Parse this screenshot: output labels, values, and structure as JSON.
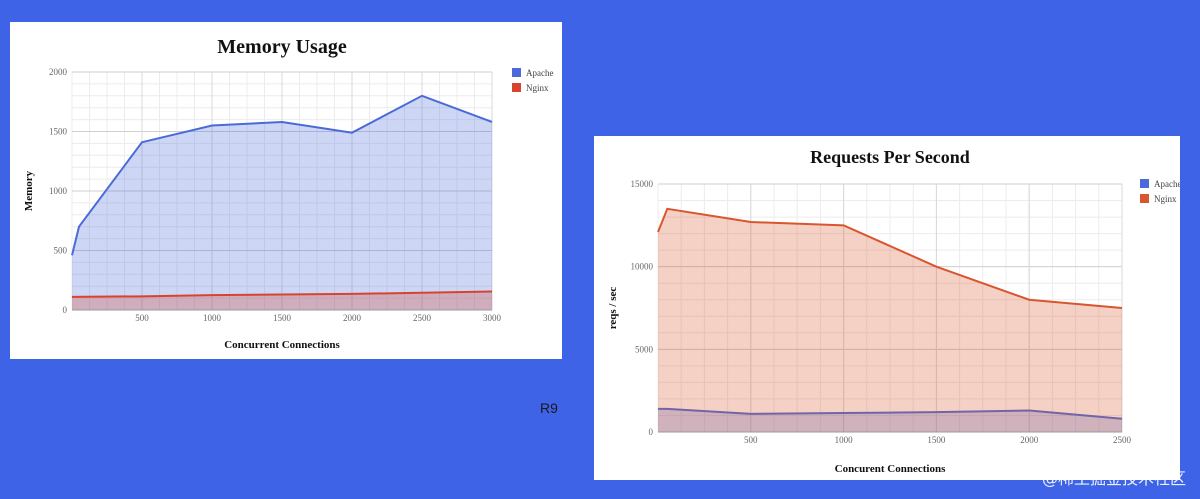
{
  "slide": {
    "label": "R9",
    "watermark": "@稀土掘金技术社区"
  },
  "colors": {
    "background": "#3e63e6",
    "apache": "#4a6ad8",
    "nginx": "#d8562e",
    "grid": "#dddddd"
  },
  "chart_data": [
    {
      "type": "area",
      "title": "Memory Usage",
      "xlabel": "Concurrent Connections",
      "ylabel": "Memory",
      "xlim": [
        0,
        3000
      ],
      "ylim": [
        0,
        2000
      ],
      "xticks": [
        500,
        1000,
        1500,
        2000,
        2500,
        3000
      ],
      "yticks": [
        0,
        500,
        1000,
        1500,
        2000
      ],
      "grid": true,
      "legend_position": "right",
      "series": [
        {
          "name": "Apache",
          "color": "#4a6ad8",
          "x": [
            0,
            50,
            500,
            1000,
            1500,
            2000,
            2500,
            3000
          ],
          "y": [
            460,
            700,
            1410,
            1550,
            1580,
            1490,
            1800,
            1580
          ]
        },
        {
          "name": "Nginx",
          "color": "#d8432e",
          "x": [
            0,
            500,
            1000,
            1500,
            2000,
            2500,
            3000
          ],
          "y": [
            110,
            115,
            125,
            130,
            135,
            145,
            155
          ]
        }
      ]
    },
    {
      "type": "area",
      "title": "Requests Per Second",
      "xlabel": "Concurent Connections",
      "ylabel": "reqs / sec",
      "xlim": [
        0,
        2500
      ],
      "ylim": [
        0,
        15000
      ],
      "xticks": [
        500,
        1000,
        1500,
        2000,
        2500
      ],
      "yticks": [
        0,
        5000,
        10000,
        15000
      ],
      "grid": true,
      "legend_position": "right",
      "series": [
        {
          "name": "Apache",
          "color": "#4a6ad8",
          "x": [
            0,
            50,
            500,
            1000,
            1500,
            2000,
            2500
          ],
          "y": [
            1400,
            1400,
            1100,
            1150,
            1200,
            1300,
            800
          ]
        },
        {
          "name": "Nginx",
          "color": "#d8562e",
          "x": [
            0,
            50,
            500,
            1000,
            1500,
            2000,
            2500
          ],
          "y": [
            12100,
            13500,
            12700,
            12500,
            10000,
            8000,
            7500
          ]
        }
      ]
    }
  ]
}
